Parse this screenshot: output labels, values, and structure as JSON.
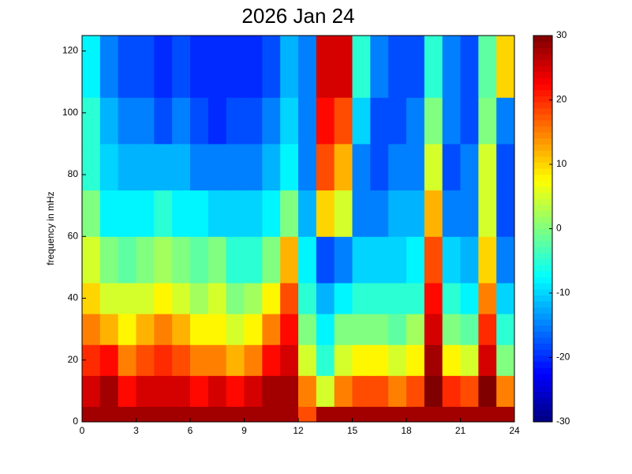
{
  "chart_data": {
    "type": "heatmap",
    "title": "2026 Jan 24",
    "y_label": "frequency in mHz",
    "colormap": "jet",
    "x_bins": [
      0,
      1,
      2,
      3,
      4,
      5,
      6,
      7,
      8,
      9,
      10,
      11,
      12,
      13,
      14,
      15,
      16,
      17,
      18,
      19,
      20,
      21,
      22,
      23,
      24
    ],
    "y_bins": [
      0,
      5,
      15,
      25,
      35,
      45,
      60,
      75,
      90,
      105,
      125
    ],
    "values": [
      [
        28,
        28,
        28,
        28,
        28,
        28,
        28,
        28,
        28,
        28,
        28,
        28,
        18,
        28,
        28,
        28,
        28,
        28,
        28,
        28,
        28,
        28,
        28,
        28
      ],
      [
        25,
        28,
        22,
        25,
        25,
        25,
        22,
        25,
        22,
        25,
        28,
        28,
        15,
        5,
        15,
        18,
        18,
        15,
        18,
        30,
        20,
        18,
        30,
        15
      ],
      [
        20,
        22,
        15,
        18,
        20,
        18,
        15,
        15,
        12,
        15,
        22,
        25,
        5,
        -5,
        5,
        8,
        8,
        5,
        8,
        28,
        8,
        5,
        25,
        0
      ],
      [
        15,
        12,
        8,
        12,
        15,
        12,
        8,
        8,
        5,
        8,
        15,
        22,
        0,
        -8,
        0,
        0,
        0,
        -2,
        2,
        25,
        0,
        -2,
        20,
        -5
      ],
      [
        10,
        5,
        5,
        5,
        8,
        5,
        2,
        5,
        0,
        2,
        8,
        18,
        -5,
        -12,
        -8,
        -5,
        -5,
        -5,
        -5,
        22,
        -5,
        -8,
        15,
        -10
      ],
      [
        5,
        0,
        -2,
        0,
        2,
        0,
        -2,
        0,
        -5,
        -5,
        0,
        12,
        -8,
        -18,
        -15,
        -10,
        -10,
        -10,
        -8,
        18,
        -10,
        -12,
        10,
        -15
      ],
      [
        0,
        -8,
        -8,
        -8,
        -5,
        -8,
        -8,
        -10,
        -10,
        -10,
        -8,
        0,
        -12,
        10,
        5,
        -15,
        -15,
        -12,
        -12,
        12,
        -15,
        -15,
        5,
        -18
      ],
      [
        -5,
        -10,
        -12,
        -12,
        -12,
        -12,
        -15,
        -15,
        -15,
        -15,
        -12,
        -8,
        -15,
        18,
        12,
        -15,
        -18,
        -15,
        -15,
        5,
        -18,
        -15,
        5,
        -18
      ],
      [
        -5,
        -12,
        -15,
        -15,
        -18,
        -15,
        -18,
        -20,
        -18,
        -18,
        -15,
        -10,
        -15,
        22,
        18,
        -10,
        -18,
        -18,
        -15,
        0,
        -15,
        -18,
        0,
        -15
      ],
      [
        -8,
        -15,
        -18,
        -18,
        -20,
        -18,
        -20,
        -20,
        -20,
        -20,
        -18,
        -12,
        -15,
        25,
        25,
        -5,
        -15,
        -18,
        -18,
        -5,
        -15,
        -18,
        -2,
        10
      ]
    ],
    "xlim": [
      0,
      24
    ],
    "xticks": [
      0,
      3,
      6,
      9,
      12,
      15,
      18,
      21,
      24
    ],
    "ylim": [
      0,
      125
    ],
    "yticks": [
      0,
      20,
      40,
      60,
      80,
      100,
      120
    ],
    "clim": [
      -30,
      30
    ],
    "cticks": [
      -30,
      -20,
      -10,
      0,
      10,
      20,
      30
    ]
  }
}
